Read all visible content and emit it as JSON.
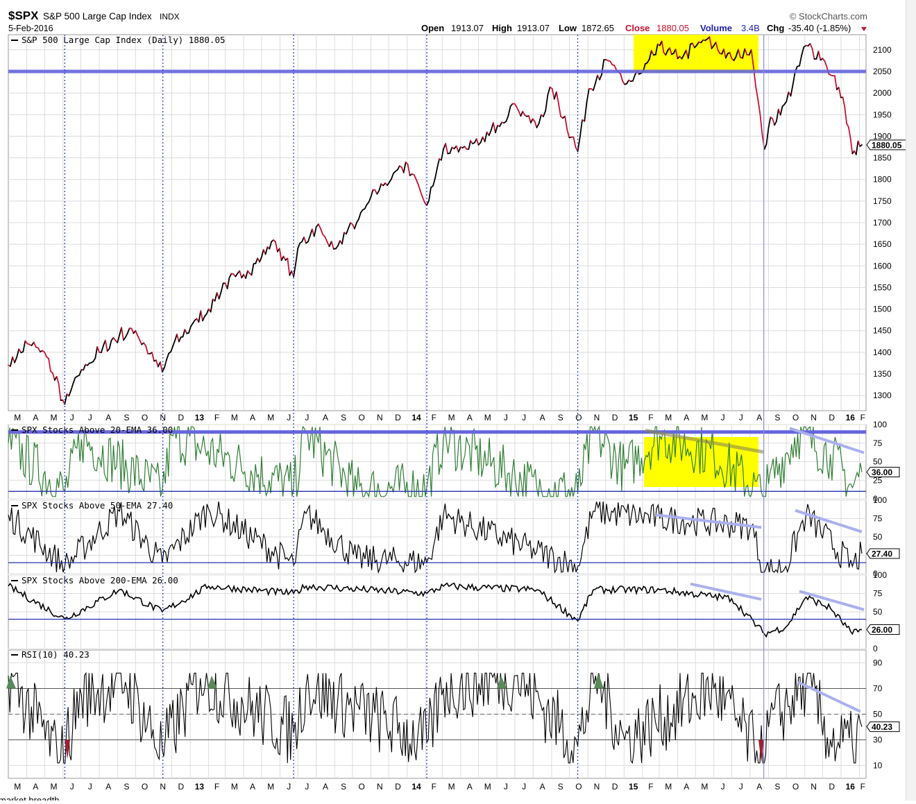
{
  "header": {
    "symbol": "$SPX",
    "name": "S&P 500 Large Cap Index",
    "exchange": "INDX",
    "date": "5-Feb-2016",
    "source": "© StockCharts.com",
    "ohlc": {
      "open_label": "Open",
      "open": "1913.07",
      "high_label": "High",
      "high": "1913.07",
      "low_label": "Low",
      "low": "1872.65",
      "close_label": "Close",
      "close": "1880.05",
      "volume_label": "Volume",
      "volume": "3.4B",
      "chg_label": "Chg",
      "chg": "-35.40 (-1.85%)"
    }
  },
  "footer_text": "market breadth",
  "colors": {
    "price_up": "#000000",
    "price_down": "#c8102e",
    "highlight": "#ffff00",
    "ref_line": "#6666dd",
    "trend_line": "#aab0ee",
    "rsi_fill": "#5a8a5a",
    "ema20_line": "#2e7d32"
  },
  "chart_data": [
    {
      "type": "line",
      "title": "S&P 500 Large Cap Index (Daily) 1880.05",
      "badge": "1880.05",
      "x_labels": [
        "M",
        "A",
        "M",
        "J",
        "J",
        "A",
        "S",
        "O",
        "N",
        "D",
        "13",
        "F",
        "M",
        "A",
        "M",
        "J",
        "J",
        "A",
        "S",
        "O",
        "N",
        "D",
        "14",
        "F",
        "M",
        "A",
        "M",
        "J",
        "J",
        "A",
        "S",
        "O",
        "N",
        "D",
        "15",
        "F",
        "M",
        "A",
        "M",
        "J",
        "J",
        "A",
        "S",
        "O",
        "N",
        "D",
        "16",
        "F"
      ],
      "yticks": [
        1300,
        1350,
        1400,
        1450,
        1500,
        1550,
        1600,
        1650,
        1700,
        1750,
        1800,
        1850,
        1900,
        1950,
        2000,
        2050,
        2100
      ],
      "ylim": [
        1265,
        2135
      ],
      "reference_line": 2050,
      "x": [
        "2012-03-01",
        "2012-04-02",
        "2012-05-01",
        "2012-06-04",
        "2012-07-02",
        "2012-08-01",
        "2012-09-04",
        "2012-10-01",
        "2012-11-15",
        "2012-12-03",
        "2013-01-02",
        "2013-02-01",
        "2013-03-01",
        "2013-04-01",
        "2013-05-01",
        "2013-05-21",
        "2013-06-24",
        "2013-07-01",
        "2013-08-01",
        "2013-09-03",
        "2013-10-08",
        "2013-11-01",
        "2014-01-02",
        "2014-02-03",
        "2014-03-03",
        "2014-04-01",
        "2014-05-01",
        "2014-06-02",
        "2014-07-01",
        "2014-08-07",
        "2014-09-02",
        "2014-10-15",
        "2014-11-03",
        "2014-12-05",
        "2015-01-02",
        "2015-02-02",
        "2015-03-02",
        "2015-04-01",
        "2015-05-21",
        "2015-06-01",
        "2015-07-01",
        "2015-08-03",
        "2015-08-25",
        "2015-09-01",
        "2015-10-01",
        "2015-11-03",
        "2015-12-01",
        "2016-01-04",
        "2016-01-20",
        "2016-02-05"
      ],
      "values": [
        1370,
        1420,
        1400,
        1280,
        1360,
        1400,
        1440,
        1450,
        1355,
        1415,
        1460,
        1500,
        1560,
        1580,
        1620,
        1660,
        1575,
        1640,
        1690,
        1640,
        1700,
        1760,
        1835,
        1740,
        1870,
        1875,
        1880,
        1925,
        1975,
        1920,
        2010,
        1865,
        2010,
        2075,
        2020,
        2050,
        2110,
        2080,
        2125,
        2110,
        2080,
        2100,
        1870,
        1920,
        1980,
        2110,
        2080,
        1990,
        1860,
        1880
      ]
    },
    {
      "type": "line",
      "title": "SPX Stocks Above 20-EMA 36.00",
      "badge": "36.00",
      "yticks": [
        0,
        25,
        50,
        75,
        100
      ],
      "ylim": [
        0,
        100
      ],
      "reference_lines": [
        10,
        90
      ],
      "x": [
        "2012-03-01",
        "2012-06-04",
        "2012-07-02",
        "2012-11-15",
        "2012-12-03",
        "2013-06-24",
        "2013-07-15",
        "2013-10-08",
        "2014-02-03",
        "2014-03-03",
        "2014-08-07",
        "2014-10-15",
        "2014-11-10",
        "2015-01-02",
        "2015-03-02",
        "2015-06-01",
        "2015-08-25",
        "2015-09-01",
        "2015-10-20",
        "2015-12-14",
        "2016-01-20",
        "2016-02-05"
      ],
      "values": [
        75,
        10,
        80,
        12,
        85,
        15,
        88,
        12,
        15,
        80,
        15,
        8,
        90,
        40,
        85,
        60,
        3,
        20,
        88,
        60,
        15,
        36
      ]
    },
    {
      "type": "line",
      "title": "SPX Stocks Above 50-EMA 27.40",
      "badge": "27.40",
      "yticks": [
        0,
        25,
        50,
        75,
        100
      ],
      "ylim": [
        0,
        100
      ],
      "reference_line": 15,
      "x": [
        "2012-03-01",
        "2012-06-04",
        "2012-09-04",
        "2012-11-15",
        "2013-02-01",
        "2013-06-24",
        "2013-07-15",
        "2013-10-08",
        "2014-02-03",
        "2014-03-03",
        "2014-08-07",
        "2014-10-15",
        "2014-11-10",
        "2015-03-02",
        "2015-08-03",
        "2015-08-25",
        "2015-09-30",
        "2015-11-03",
        "2016-01-20",
        "2016-02-05"
      ],
      "values": [
        80,
        10,
        85,
        15,
        88,
        12,
        82,
        20,
        15,
        80,
        30,
        10,
        85,
        75,
        65,
        2,
        10,
        80,
        10,
        27.4
      ]
    },
    {
      "type": "line",
      "title": "SPX Stocks Above 200-EMA 26.00",
      "badge": "26.00",
      "yticks": [
        0,
        25,
        50,
        75,
        100
      ],
      "ylim": [
        0,
        100
      ],
      "reference_line": 40,
      "x": [
        "2012-03-01",
        "2012-06-04",
        "2012-09-04",
        "2012-11-15",
        "2013-02-01",
        "2013-06-24",
        "2013-07-15",
        "2014-02-03",
        "2014-03-03",
        "2014-08-07",
        "2014-10-15",
        "2014-11-10",
        "2015-03-02",
        "2015-07-01",
        "2015-08-25",
        "2015-10-01",
        "2015-11-03",
        "2015-12-14",
        "2016-01-20",
        "2016-02-05"
      ],
      "values": [
        85,
        40,
        80,
        50,
        85,
        75,
        85,
        75,
        85,
        80,
        38,
        80,
        80,
        68,
        20,
        30,
        70,
        55,
        20,
        26
      ]
    },
    {
      "type": "line",
      "title": "RSI(10) 40.23",
      "badge": "40.23",
      "yticks": [
        10,
        30,
        50,
        70,
        90
      ],
      "ylim": [
        0,
        100
      ],
      "reference_lines": [
        30,
        50,
        70
      ],
      "x": [
        "2012-03-01",
        "2012-05-28",
        "2012-07-02",
        "2012-09-14",
        "2012-11-15",
        "2013-01-18",
        "2013-06-24",
        "2013-07-15",
        "2014-02-03",
        "2014-03-03",
        "2014-07-03",
        "2014-10-15",
        "2014-11-14",
        "2015-01-02",
        "2015-06-01",
        "2015-08-25",
        "2015-09-01",
        "2015-11-03",
        "2015-12-14",
        "2016-01-20",
        "2016-02-05"
      ],
      "values": [
        80,
        15,
        65,
        75,
        22,
        78,
        35,
        72,
        28,
        70,
        80,
        25,
        80,
        30,
        70,
        12,
        40,
        75,
        30,
        25,
        40.23
      ]
    }
  ]
}
